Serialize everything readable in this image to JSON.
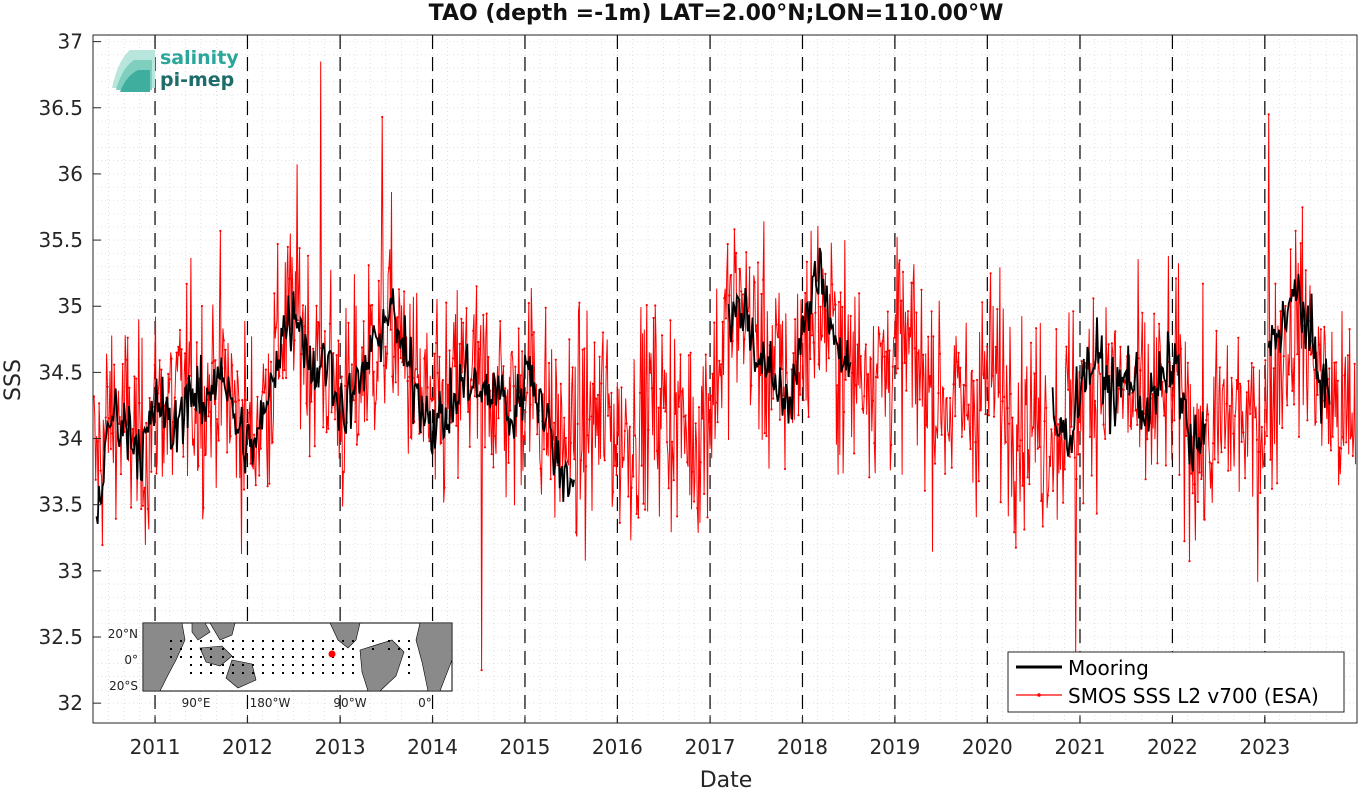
{
  "chart_data": {
    "type": "line",
    "title": "TAO (depth =-1m) LAT=2.00°N;LON=110.00°W",
    "xlabel": "Date",
    "ylabel": "SSS",
    "xlim": [
      "2010-05-01",
      "2023-12-31"
    ],
    "ylim": [
      31.85,
      37.05
    ],
    "yticks": [
      "32",
      "32.5",
      "33",
      "33.5",
      "34",
      "34.5",
      "35",
      "35.5",
      "36",
      "36.5",
      "37"
    ],
    "xticks": [
      "2011",
      "2012",
      "2013",
      "2014",
      "2015",
      "2016",
      "2017",
      "2018",
      "2019",
      "2020",
      "2021",
      "2022",
      "2023"
    ],
    "grid": true,
    "year_boundaries_dashed": true,
    "legend_position": "bottom-right",
    "series": [
      {
        "name": "Mooring",
        "color": "#000000",
        "style": "thick line",
        "x": [
          "2010-05",
          "2010-07",
          "2010-09",
          "2010-11",
          "2011-01",
          "2011-03",
          "2011-05",
          "2011-07",
          "2011-09",
          "2011-11",
          "2012-01",
          "2012-03",
          "2012-05",
          "2012-07",
          "2012-09",
          "2012-11",
          "2013-01",
          "2013-03",
          "2013-05",
          "2013-07",
          "2013-09",
          "2013-11",
          "2014-01",
          "2014-03",
          "2014-05",
          "2014-07",
          "2014-09",
          "2014-11",
          "2015-01",
          "2015-03",
          "2015-05",
          "2015-07",
          "2017-03",
          "2017-05",
          "2017-07",
          "2017-09",
          "2017-11",
          "2018-01",
          "2018-03",
          "2018-05",
          "2018-07",
          "2020-09",
          "2020-11",
          "2021-01",
          "2021-03",
          "2021-05",
          "2021-07",
          "2021-09",
          "2021-11",
          "2022-01",
          "2022-03",
          "2022-05",
          "2023-01",
          "2023-03",
          "2023-05",
          "2023-07",
          "2023-09"
        ],
        "y": [
          33.4,
          34.2,
          34.1,
          33.9,
          34.3,
          34.0,
          34.4,
          34.2,
          34.6,
          34.1,
          33.9,
          34.2,
          34.8,
          35.0,
          34.5,
          34.6,
          34.2,
          34.4,
          34.7,
          35.0,
          34.6,
          34.3,
          34.1,
          34.2,
          34.5,
          34.3,
          34.4,
          34.1,
          34.6,
          34.2,
          33.8,
          33.7,
          34.9,
          35.0,
          34.6,
          34.4,
          34.3,
          34.9,
          35.3,
          34.7,
          34.5,
          34.1,
          34.0,
          34.5,
          34.6,
          34.3,
          34.5,
          34.2,
          34.4,
          34.6,
          33.9,
          34.0,
          34.7,
          34.9,
          35.1,
          34.6,
          34.3
        ]
      },
      {
        "name": "SMOS SSS L2 v700 (ESA)",
        "color": "#ff0000",
        "style": "thin line with markers",
        "monthly_mean": {
          "x": [
            "2010-05",
            "2010-07",
            "2010-09",
            "2010-11",
            "2011-01",
            "2011-03",
            "2011-05",
            "2011-07",
            "2011-09",
            "2011-11",
            "2012-01",
            "2012-03",
            "2012-05",
            "2012-07",
            "2012-09",
            "2012-11",
            "2013-01",
            "2013-03",
            "2013-05",
            "2013-07",
            "2013-09",
            "2013-11",
            "2014-01",
            "2014-03",
            "2014-05",
            "2014-07",
            "2014-09",
            "2014-11",
            "2015-01",
            "2015-03",
            "2015-05",
            "2015-07",
            "2015-09",
            "2015-11",
            "2016-01",
            "2016-03",
            "2016-05",
            "2016-07",
            "2016-09",
            "2016-11",
            "2017-01",
            "2017-03",
            "2017-05",
            "2017-07",
            "2017-09",
            "2017-11",
            "2018-01",
            "2018-03",
            "2018-05",
            "2018-07",
            "2018-09",
            "2018-11",
            "2019-01",
            "2019-03",
            "2019-05",
            "2019-07",
            "2019-09",
            "2019-11",
            "2020-01",
            "2020-03",
            "2020-05",
            "2020-07",
            "2020-09",
            "2020-11",
            "2021-01",
            "2021-03",
            "2021-05",
            "2021-07",
            "2021-09",
            "2021-11",
            "2022-01",
            "2022-03",
            "2022-05",
            "2022-07",
            "2022-09",
            "2022-11",
            "2023-01",
            "2023-03",
            "2023-05",
            "2023-07",
            "2023-09",
            "2023-11"
          ],
          "y": [
            33.8,
            34.2,
            34.1,
            33.9,
            34.3,
            34.2,
            34.4,
            34.3,
            34.5,
            34.2,
            34.0,
            34.3,
            34.8,
            35.0,
            34.6,
            34.5,
            34.2,
            34.4,
            34.7,
            34.9,
            34.6,
            34.3,
            34.1,
            34.3,
            34.5,
            34.4,
            34.4,
            34.2,
            34.5,
            34.2,
            34.0,
            34.0,
            34.1,
            34.2,
            34.0,
            34.1,
            34.3,
            34.2,
            34.1,
            34.0,
            34.4,
            34.9,
            35.0,
            34.7,
            34.5,
            34.4,
            34.8,
            35.0,
            34.7,
            34.5,
            34.6,
            34.5,
            34.7,
            34.6,
            34.4,
            34.3,
            34.2,
            34.3,
            34.5,
            34.3,
            34.2,
            34.1,
            34.1,
            34.2,
            34.3,
            34.5,
            34.4,
            34.3,
            34.2,
            34.3,
            34.4,
            34.1,
            33.9,
            34.1,
            34.2,
            34.0,
            34.3,
            34.7,
            34.9,
            34.6,
            34.3,
            34.1
          ]
        },
        "daily_range_approx": [
          32.25,
          36.85
        ],
        "extremes": [
          {
            "x": "2012-10",
            "y": 36.85
          },
          {
            "x": "2013-06",
            "y": 36.43
          },
          {
            "x": "2023-01",
            "y": 36.45
          },
          {
            "x": "2014-07",
            "y": 32.25
          },
          {
            "x": "2020-12",
            "y": 32.35
          }
        ]
      }
    ]
  },
  "logo": {
    "line1": "salinity",
    "line2": "pi-mep",
    "color1": "#2aa79b",
    "color2": "#1e6d6a"
  },
  "inset_map": {
    "description_icon": "world-map-icon",
    "y_ticks": [
      "20°N",
      "0°",
      "20°S"
    ],
    "x_ticks": [
      "90°E",
      "180°W",
      "90°W",
      "0°"
    ],
    "marker_color": "#ff0000"
  },
  "colors": {
    "mooring": "#000000",
    "smos": "#ff0000",
    "grid": "#d9d9d9",
    "axes": "#262626"
  }
}
